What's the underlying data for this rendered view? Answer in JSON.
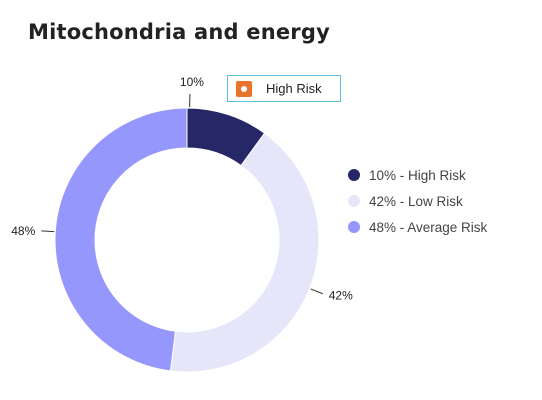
{
  "title": "Mitochondria and energy",
  "tooltip": {
    "label": "High Risk",
    "icon": "circle-marker-icon",
    "icon_color": "#e8732a"
  },
  "legend": {
    "items": [
      {
        "label": "10% - High Risk",
        "color": "#262766"
      },
      {
        "label": "42% - Low Risk",
        "color": "#e6e6fa"
      },
      {
        "label": "48% - Average Risk",
        "color": "#9597fc"
      }
    ]
  },
  "chart_data": {
    "type": "pie",
    "donut": true,
    "categories": [
      "High Risk",
      "Low Risk",
      "Average Risk"
    ],
    "values": [
      10,
      42,
      48
    ],
    "data_labels": [
      "10%",
      "42%",
      "48%"
    ],
    "colors": [
      "#262766",
      "#e6e6fa",
      "#9597fc"
    ],
    "title": "Mitochondria and energy",
    "legend_position": "right"
  }
}
